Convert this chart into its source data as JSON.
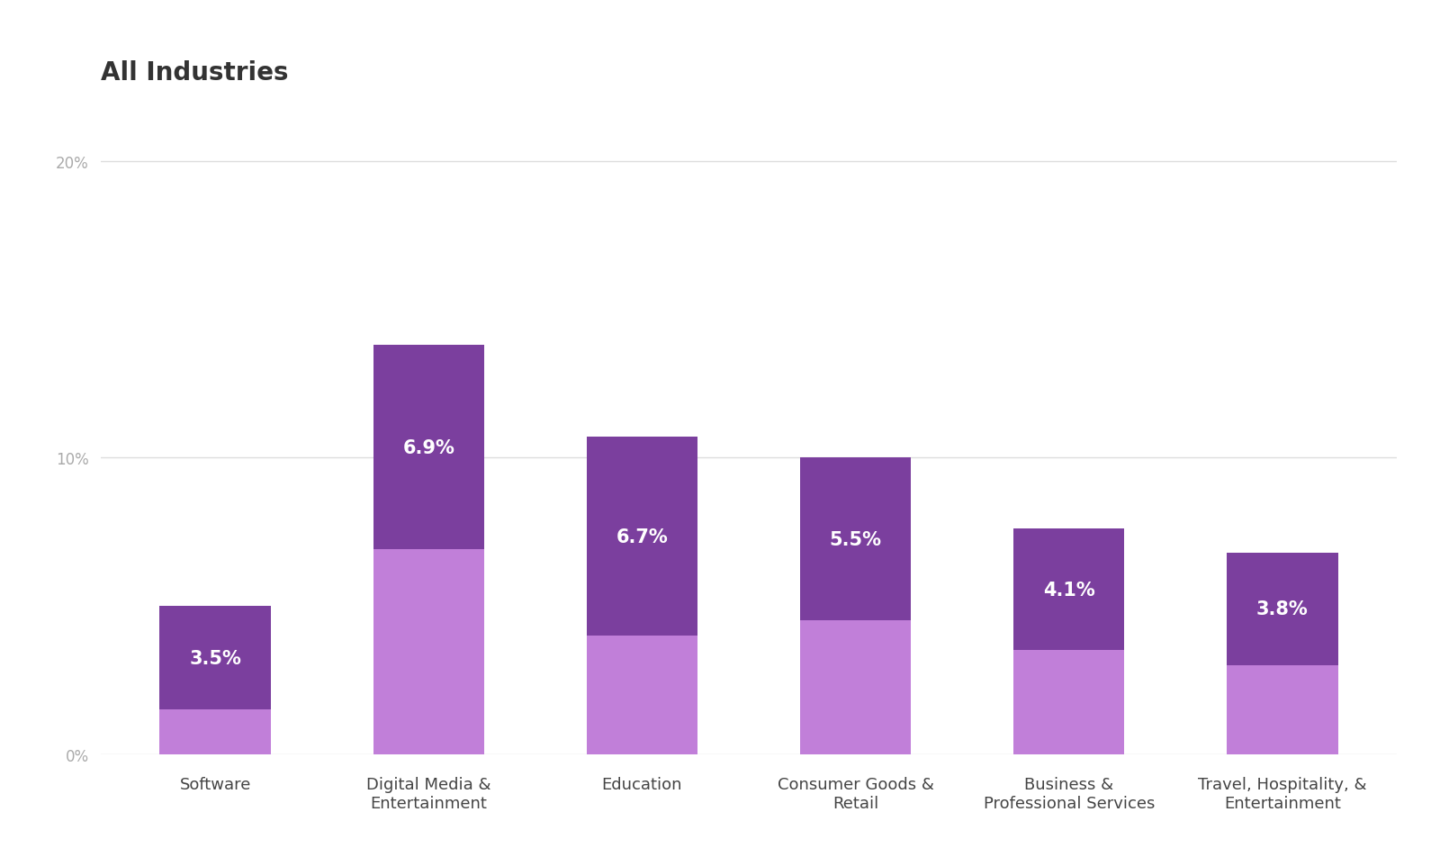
{
  "title": "All Industries",
  "categories": [
    "Software",
    "Digital Media &\nEntertainment",
    "Education",
    "Consumer Goods &\nRetail",
    "Business &\nProfessional Services",
    "Travel, Hospitality, &\nEntertainment"
  ],
  "dark_values": [
    3.5,
    6.9,
    6.7,
    5.5,
    4.1,
    3.8
  ],
  "light_values": [
    1.5,
    6.9,
    4.0,
    4.5,
    3.5,
    3.0
  ],
  "labels": [
    "3.5%",
    "6.9%",
    "6.7%",
    "5.5%",
    "4.1%",
    "3.8%"
  ],
  "dark_color": "#7B3F9E",
  "light_color": "#C17FD9",
  "background_color": "#FFFFFF",
  "title_fontsize": 20,
  "label_fontsize": 15,
  "tick_fontsize": 12,
  "xlabel_fontsize": 13,
  "ylim": [
    0,
    22
  ],
  "yticks": [
    0,
    10,
    20
  ],
  "ytick_labels": [
    "0%",
    "10%",
    "20%"
  ],
  "grid_color": "#DDDDDD"
}
